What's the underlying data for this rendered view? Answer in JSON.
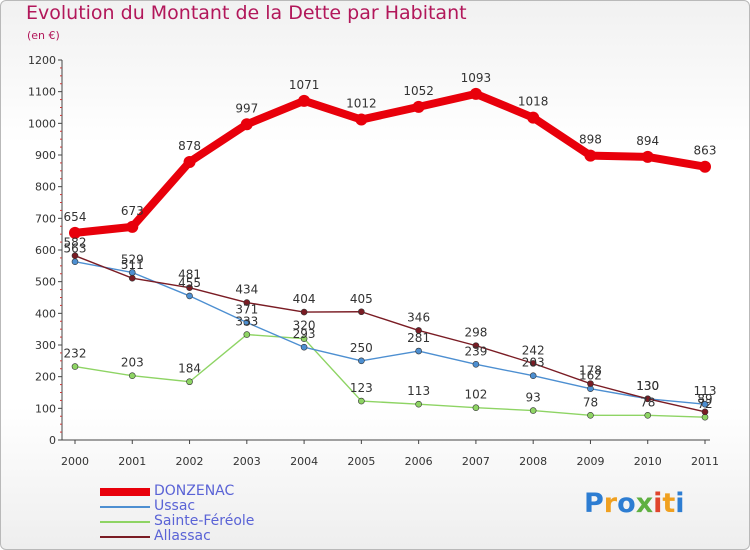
{
  "header": {
    "title": "Evolution du Montant de la Dette par Habitant",
    "subtitle": "(en €)"
  },
  "logo": {
    "text": "Proxiti",
    "letters": [
      "P",
      "r",
      "o",
      "x",
      "i",
      "t",
      "i"
    ]
  },
  "chart_data": {
    "type": "line",
    "title": "Evolution du Montant de la Dette par Habitant",
    "ylabel": "(en €)",
    "xlabel": "",
    "x": [
      "2000",
      "2001",
      "2002",
      "2003",
      "2004",
      "2005",
      "2006",
      "2007",
      "2008",
      "2009",
      "2010",
      "2011"
    ],
    "ylim": [
      0,
      1200
    ],
    "yticks": [
      0,
      100,
      200,
      300,
      400,
      500,
      600,
      700,
      800,
      900,
      1000,
      1100,
      1200
    ],
    "grid": false,
    "legend_position": "bottom-left",
    "series": [
      {
        "name": "DONZENAC",
        "color": "#e8000b",
        "values": [
          654,
          673,
          878,
          997,
          1071,
          1012,
          1052,
          1093,
          1018,
          898,
          894,
          863
        ]
      },
      {
        "name": "Ussac",
        "color": "#4d8fd1",
        "values": [
          563,
          529,
          455,
          371,
          293,
          250,
          281,
          239,
          203,
          162,
          130,
          113
        ]
      },
      {
        "name": "Sainte-Féréole",
        "color": "#8ed464",
        "values": [
          232,
          203,
          184,
          333,
          320,
          123,
          113,
          102,
          93,
          78,
          78,
          72
        ]
      },
      {
        "name": "Allassac",
        "color": "#7a1c24",
        "values": [
          582,
          511,
          481,
          434,
          404,
          405,
          346,
          298,
          242,
          178,
          130,
          89
        ]
      }
    ]
  }
}
